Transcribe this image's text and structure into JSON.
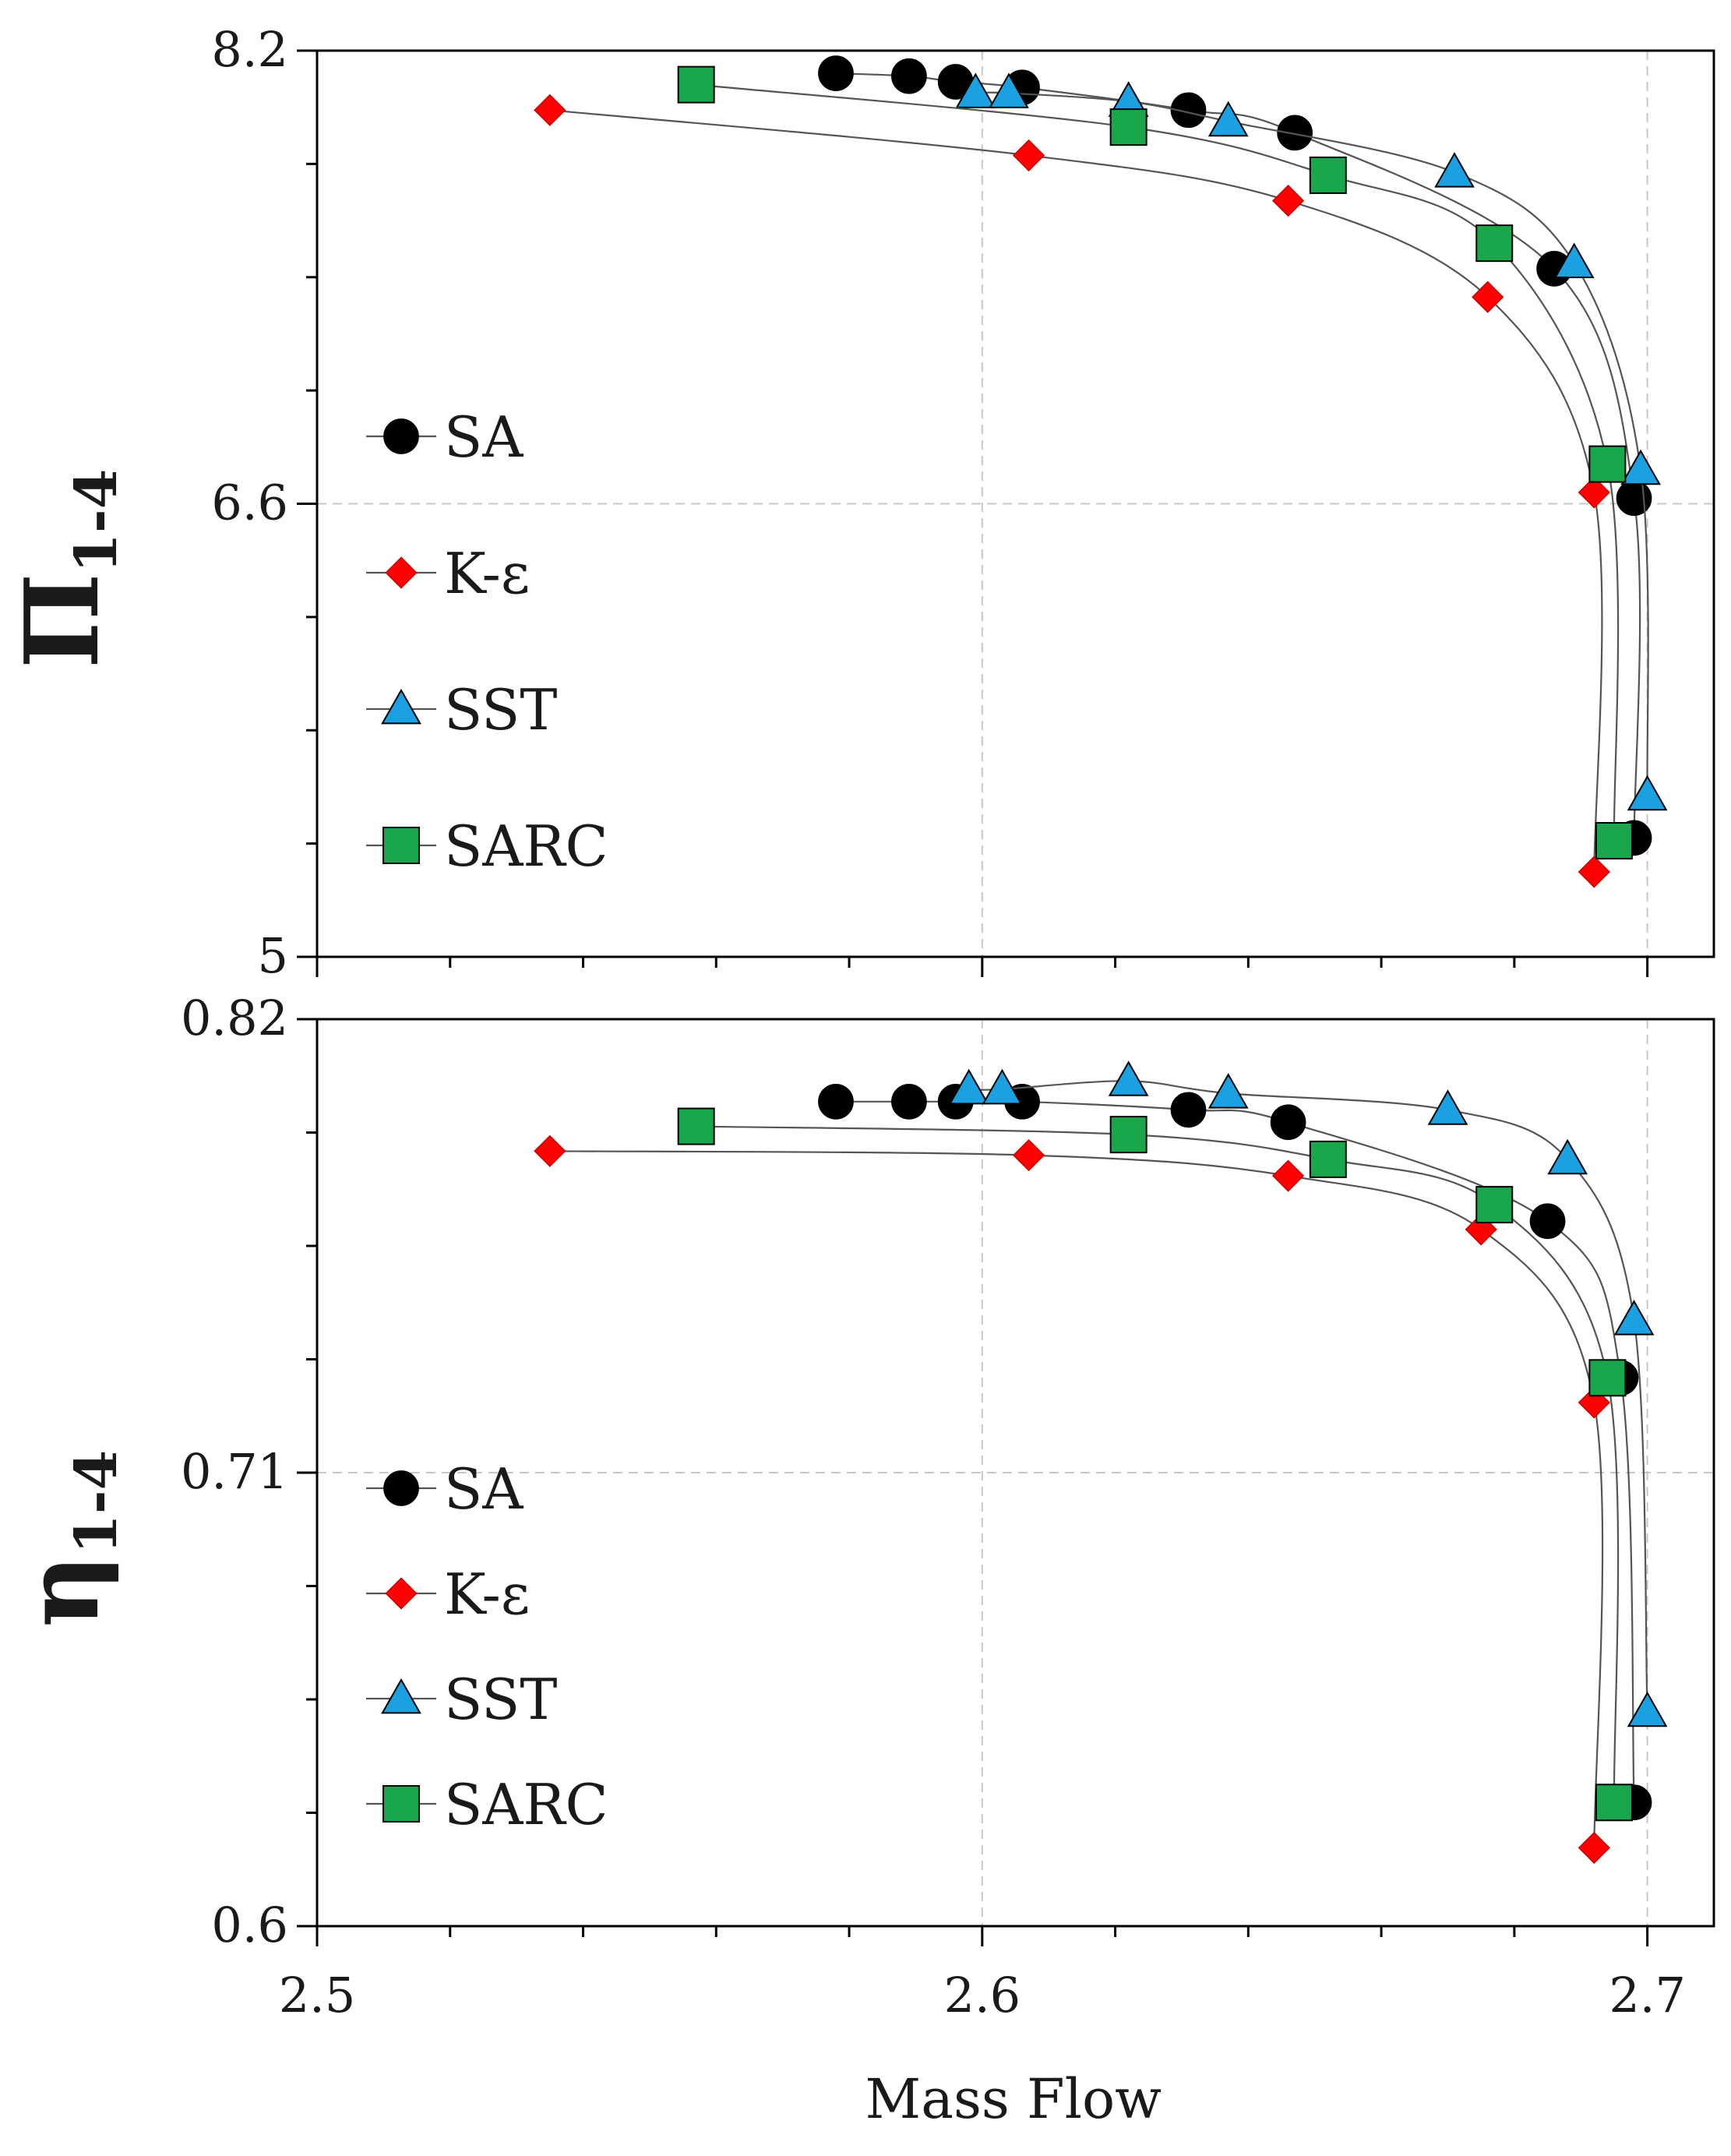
{
  "chart_data": [
    {
      "type": "line",
      "panel": "top",
      "ylabel": {
        "main": "Π",
        "subscript": "1-4"
      },
      "xlabel": "",
      "xlim": [
        2.5,
        2.71
      ],
      "ylim": [
        5,
        8.2
      ],
      "yticks": [
        {
          "value": 5,
          "label": "5"
        },
        {
          "value": 6.6,
          "label": "6.6"
        },
        {
          "value": 8.2,
          "label": "8.2"
        }
      ],
      "grid": true,
      "legend": "middle-left",
      "series": [
        {
          "name": "SA",
          "marker": "circle",
          "color": "#000000",
          "x": [
            2.578,
            2.589,
            2.596,
            2.606,
            2.631,
            2.647,
            2.686,
            2.698,
            2.698
          ],
          "y": [
            8.12,
            8.11,
            8.09,
            8.07,
            7.99,
            7.91,
            7.43,
            6.62,
            5.42
          ]
        },
        {
          "name": "K-ε",
          "marker": "diamond",
          "color": "#ff0000",
          "x": [
            2.535,
            2.607,
            2.646,
            2.676,
            2.692,
            2.692
          ],
          "y": [
            7.99,
            7.83,
            7.67,
            7.33,
            6.64,
            5.3
          ]
        },
        {
          "name": "SST",
          "marker": "triangle",
          "color": "#1ba1e2",
          "x": [
            2.599,
            2.604,
            2.622,
            2.637,
            2.671,
            2.689,
            2.699,
            2.7
          ],
          "y": [
            8.05,
            8.05,
            8.02,
            7.95,
            7.77,
            7.45,
            6.72,
            5.57
          ]
        },
        {
          "name": "SARC",
          "marker": "square",
          "color": "#1aa64b",
          "x": [
            2.557,
            2.622,
            2.652,
            2.677,
            2.694,
            2.695
          ],
          "y": [
            8.08,
            7.93,
            7.76,
            7.52,
            6.74,
            5.41
          ]
        }
      ]
    },
    {
      "type": "line",
      "panel": "bottom",
      "ylabel": {
        "main": "η",
        "subscript": "1-4"
      },
      "xlabel": "Mass Flow",
      "xlim": [
        2.5,
        2.71
      ],
      "ylim": [
        0.6,
        0.82
      ],
      "yticks": [
        {
          "value": 0.6,
          "label": "0.6"
        },
        {
          "value": 0.71,
          "label": "0.71"
        },
        {
          "value": 0.82,
          "label": "0.82"
        }
      ],
      "xticks": [
        {
          "value": 2.5,
          "label": "2.5"
        },
        {
          "value": 2.6,
          "label": "2.6"
        },
        {
          "value": 2.7,
          "label": "2.7"
        }
      ],
      "grid": true,
      "legend": "bottom-left",
      "series": [
        {
          "name": "SA",
          "marker": "circle",
          "color": "#000000",
          "x": [
            2.578,
            2.589,
            2.596,
            2.606,
            2.631,
            2.646,
            2.685,
            2.696,
            2.698
          ],
          "y": [
            0.8,
            0.8,
            0.8,
            0.8,
            0.798,
            0.795,
            0.771,
            0.733,
            0.63
          ]
        },
        {
          "name": "K-ε",
          "marker": "diamond",
          "color": "#ff0000",
          "x": [
            2.535,
            2.607,
            2.646,
            2.675,
            2.692,
            2.692
          ],
          "y": [
            0.788,
            0.787,
            0.782,
            0.769,
            0.727,
            0.619
          ]
        },
        {
          "name": "SST",
          "marker": "triangle",
          "color": "#1ba1e2",
          "x": [
            2.598,
            2.603,
            2.622,
            2.637,
            2.67,
            2.688,
            2.698,
            2.7
          ],
          "y": [
            0.803,
            0.803,
            0.805,
            0.802,
            0.798,
            0.786,
            0.747,
            0.652
          ]
        },
        {
          "name": "SARC",
          "marker": "square",
          "color": "#1aa64b",
          "x": [
            2.557,
            2.622,
            2.652,
            2.677,
            2.694,
            2.695
          ],
          "y": [
            0.794,
            0.792,
            0.786,
            0.775,
            0.733,
            0.63
          ]
        }
      ]
    }
  ]
}
